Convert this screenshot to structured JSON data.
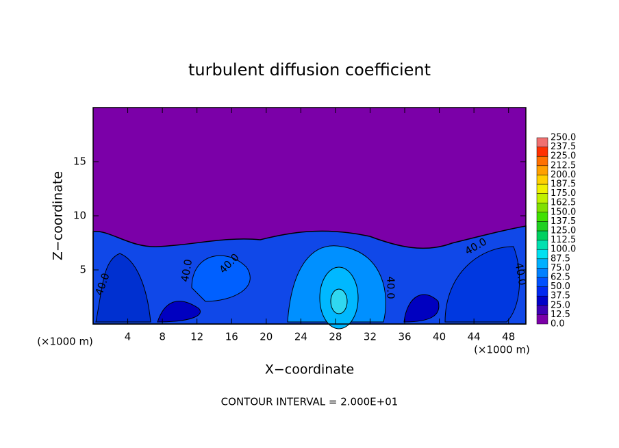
{
  "chart_data": {
    "type": "contour",
    "title": "turbulent diffusion coefficient",
    "x_label": "X−coordinate",
    "y_label": "Z−coordinate",
    "x_unit": "(×1000 m)",
    "x_unit_right": "(×1000 m)",
    "footer": "CONTOUR INTERVAL = 2.000E+01",
    "xlim": [
      0,
      50
    ],
    "ylim": [
      0,
      20
    ],
    "xticks": [
      4,
      8,
      12,
      16,
      20,
      24,
      28,
      32,
      36,
      40,
      44,
      48
    ],
    "yticks": [
      5,
      10,
      15
    ],
    "contour_labels": [
      "40.0",
      "40.0",
      "40.0",
      "40.0",
      "40.0",
      "40.0"
    ],
    "levels": [
      {
        "value": 0,
        "label": "0.0"
      },
      {
        "value": 12.5,
        "label": "12.5"
      },
      {
        "value": 25,
        "label": "25.0"
      },
      {
        "value": 37.5,
        "label": "37.5"
      },
      {
        "value": 50,
        "label": "50.0"
      },
      {
        "value": 62.5,
        "label": "62.5"
      },
      {
        "value": 75,
        "label": "75.0"
      },
      {
        "value": 87.5,
        "label": "87.5"
      },
      {
        "value": 100,
        "label": "100.0"
      },
      {
        "value": 112.5,
        "label": "112.5"
      },
      {
        "value": 125,
        "label": "125.0"
      },
      {
        "value": 137.5,
        "label": "137.5"
      },
      {
        "value": 150,
        "label": "150.0"
      },
      {
        "value": 162.5,
        "label": "162.5"
      },
      {
        "value": 175,
        "label": "175.0"
      },
      {
        "value": 187.5,
        "label": "187.5"
      },
      {
        "value": 200,
        "label": "200.0"
      },
      {
        "value": 212.5,
        "label": "212.5"
      },
      {
        "value": 225,
        "label": "225.0"
      },
      {
        "value": 237.5,
        "label": "237.5"
      },
      {
        "value": 250,
        "label": "250.0"
      }
    ],
    "colors": [
      "#7b00a8",
      "#3c00b4",
      "#0000c8",
      "#0028f0",
      "#0050ff",
      "#0080ff",
      "#00b0ff",
      "#00e0f0",
      "#00e0b0",
      "#00d060",
      "#20d020",
      "#40e000",
      "#80e000",
      "#c0f000",
      "#f0f000",
      "#ffd000",
      "#ffa000",
      "#ff7000",
      "#ff3000",
      "#f07070"
    ]
  }
}
